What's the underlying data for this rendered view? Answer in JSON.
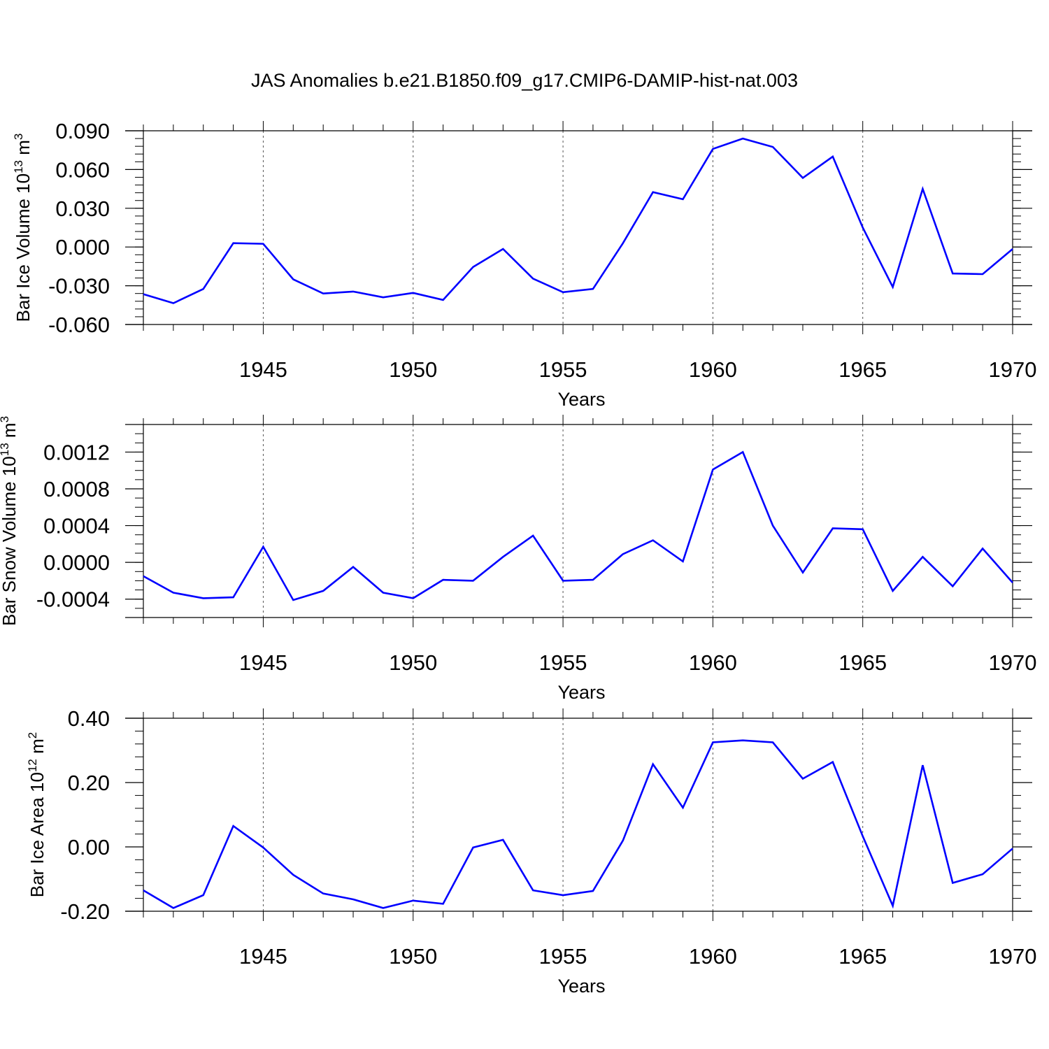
{
  "figure": {
    "title": "JAS Anomalies b.e21.B1850.f09_g17.CMIP6-DAMIP-hist-nat.003"
  },
  "colors": {
    "line": "#0000ff",
    "axis": "#000000",
    "grid": "#555555"
  },
  "chart_data": [
    {
      "type": "line",
      "name": "ice-volume",
      "ylabel": {
        "text": "Bar Ice Volume 10",
        "sup": "13",
        "unit": " m",
        "unit_sup": "3"
      },
      "xlabel": "Years",
      "xlim": [
        1941,
        1970
      ],
      "ylim": [
        -0.06,
        0.09
      ],
      "yticks": [
        "0.090",
        "0.060",
        "0.030",
        "0.000",
        "-0.030",
        "-0.060"
      ],
      "ytick_values": [
        0.09,
        0.06,
        0.03,
        0.0,
        -0.03,
        -0.06
      ],
      "xticks": [
        "1945",
        "1950",
        "1955",
        "1960",
        "1965",
        "1970"
      ],
      "xtick_values": [
        1945,
        1950,
        1955,
        1960,
        1965,
        1970
      ],
      "x": [
        1941,
        1942,
        1943,
        1944,
        1945,
        1946,
        1947,
        1948,
        1949,
        1950,
        1951,
        1952,
        1953,
        1954,
        1955,
        1956,
        1957,
        1958,
        1959,
        1960,
        1961,
        1962,
        1963,
        1964,
        1965,
        1966,
        1967,
        1968,
        1969,
        1970
      ],
      "values": [
        -0.0365,
        -0.0435,
        -0.0325,
        0.003,
        0.0025,
        -0.025,
        -0.036,
        -0.0345,
        -0.039,
        -0.0355,
        -0.041,
        -0.0155,
        -0.0015,
        -0.0245,
        -0.035,
        -0.0325,
        0.003,
        0.0425,
        0.037,
        0.076,
        0.084,
        0.0775,
        0.0535,
        0.07,
        0.015,
        -0.031,
        0.045,
        -0.0205,
        -0.021,
        -0.0015
      ]
    },
    {
      "type": "line",
      "name": "snow-volume",
      "ylabel": {
        "text": "Bar Snow Volume 10",
        "sup": "13",
        "unit": " m",
        "unit_sup": "3"
      },
      "xlabel": "Years",
      "xlim": [
        1941,
        1970
      ],
      "ylim": [
        -0.0006,
        0.0015
      ],
      "yticks": [
        "0.0012",
        "0.0008",
        "0.0004",
        "0.0000",
        "-0.0004"
      ],
      "ytick_values": [
        0.0012,
        0.0008,
        0.0004,
        0.0,
        -0.0004
      ],
      "xticks": [
        "1945",
        "1950",
        "1955",
        "1960",
        "1965",
        "1970"
      ],
      "xtick_values": [
        1945,
        1950,
        1955,
        1960,
        1965,
        1970
      ],
      "x": [
        1941,
        1942,
        1943,
        1944,
        1945,
        1946,
        1947,
        1948,
        1949,
        1950,
        1951,
        1952,
        1953,
        1954,
        1955,
        1956,
        1957,
        1958,
        1959,
        1960,
        1961,
        1962,
        1963,
        1964,
        1965,
        1966,
        1967,
        1968,
        1969,
        1970
      ],
      "values": [
        -0.00015,
        -0.00033,
        -0.00039,
        -0.00038,
        0.00017,
        -0.00041,
        -0.00031,
        -5e-05,
        -0.00033,
        -0.00039,
        -0.00019,
        -0.0002,
        6e-05,
        0.00029,
        -0.0002,
        -0.00019,
        9e-05,
        0.00024,
        1e-05,
        0.00101,
        0.0012,
        0.0004,
        -0.00011,
        0.00037,
        0.00036,
        -0.00031,
        6e-05,
        -0.00026,
        0.00015,
        -0.00022
      ]
    },
    {
      "type": "line",
      "name": "ice-area",
      "ylabel": {
        "text": "Bar Ice Area 10",
        "sup": "12",
        "unit": " m",
        "unit_sup": "2"
      },
      "xlabel": "Years",
      "xlim": [
        1941,
        1970
      ],
      "ylim": [
        -0.2,
        0.4
      ],
      "yticks": [
        "0.40",
        "0.20",
        "0.00",
        "-0.20"
      ],
      "ytick_values": [
        0.4,
        0.2,
        0.0,
        -0.2
      ],
      "xticks": [
        "1945",
        "1950",
        "1955",
        "1960",
        "1965",
        "1970"
      ],
      "xtick_values": [
        1945,
        1950,
        1955,
        1960,
        1965,
        1970
      ],
      "x": [
        1941,
        1942,
        1943,
        1944,
        1945,
        1946,
        1947,
        1948,
        1949,
        1950,
        1951,
        1952,
        1953,
        1954,
        1955,
        1956,
        1957,
        1958,
        1959,
        1960,
        1961,
        1962,
        1963,
        1964,
        1965,
        1966,
        1967,
        1968,
        1969,
        1970
      ],
      "values": [
        -0.135,
        -0.19,
        -0.15,
        0.065,
        -0.002,
        -0.087,
        -0.145,
        -0.163,
        -0.19,
        -0.167,
        -0.177,
        -0.002,
        0.022,
        -0.135,
        -0.15,
        -0.137,
        0.02,
        0.257,
        0.122,
        0.325,
        0.331,
        0.325,
        0.212,
        0.264,
        0.033,
        -0.183,
        0.254,
        -0.112,
        -0.085,
        -0.005
      ]
    }
  ]
}
